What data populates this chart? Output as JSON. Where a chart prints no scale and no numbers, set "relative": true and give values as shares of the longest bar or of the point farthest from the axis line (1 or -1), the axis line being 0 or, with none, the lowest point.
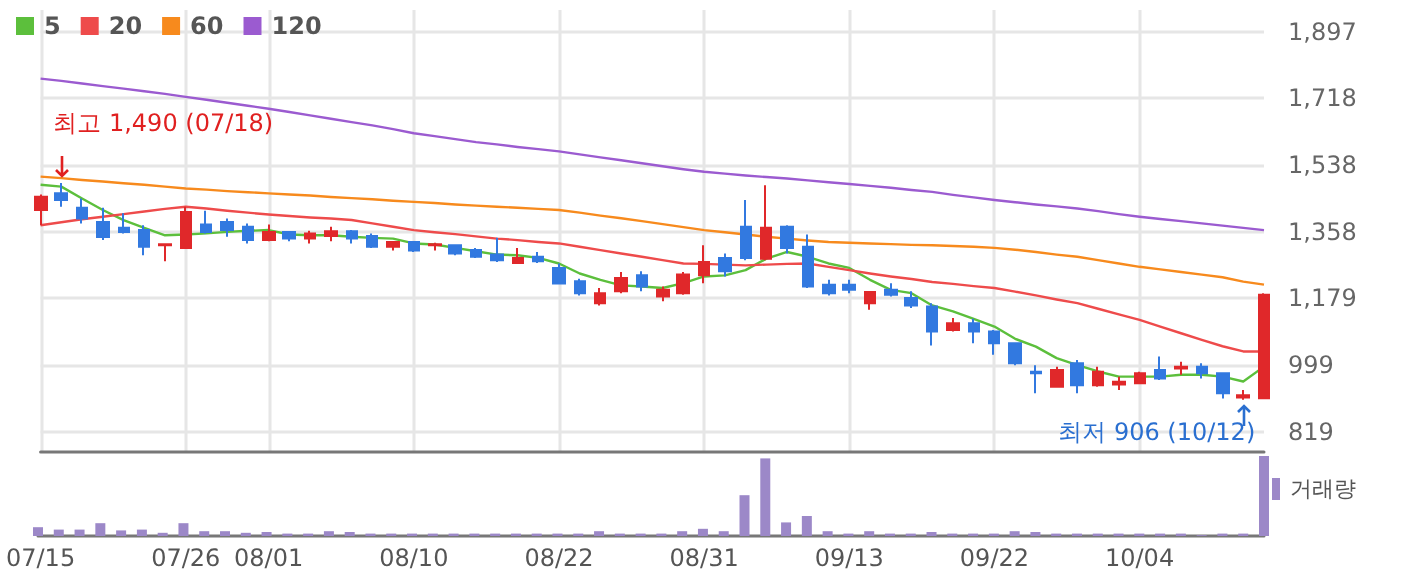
{
  "chart_data": [
    {
      "type": "candlestick",
      "categories": [
        "07/15",
        null,
        null,
        null,
        null,
        null,
        null,
        "07/26",
        null,
        null,
        null,
        "08/01",
        null,
        null,
        null,
        null,
        null,
        null,
        "08/10",
        null,
        null,
        null,
        null,
        null,
        null,
        "08/22",
        null,
        null,
        null,
        null,
        null,
        null,
        "08/31",
        null,
        null,
        null,
        null,
        null,
        null,
        "09/13",
        null,
        null,
        null,
        null,
        null,
        null,
        "09/22",
        null,
        null,
        null,
        null,
        null,
        null,
        "10/04",
        null,
        null,
        null,
        null,
        null,
        null
      ],
      "ohlc": [
        [
          1417,
          1459,
          1376,
          1453
        ],
        [
          1462,
          1490,
          1426,
          1444
        ],
        [
          1423,
          1448,
          1381,
          1394
        ],
        [
          1385,
          1423,
          1336,
          1344
        ],
        [
          1369,
          1408,
          1354,
          1358
        ],
        [
          1363,
          1376,
          1295,
          1318
        ],
        [
          1322,
          1327,
          1279,
          1325
        ],
        [
          1315,
          1426,
          1315,
          1412
        ],
        [
          1378,
          1415,
          1354,
          1358
        ],
        [
          1385,
          1394,
          1345,
          1363
        ],
        [
          1372,
          1381,
          1327,
          1336
        ],
        [
          1336,
          1378,
          1333,
          1358
        ],
        [
          1358,
          1360,
          1333,
          1340
        ],
        [
          1340,
          1361,
          1327,
          1354
        ],
        [
          1347,
          1372,
          1333,
          1360
        ],
        [
          1360,
          1363,
          1327,
          1340
        ],
        [
          1347,
          1354,
          1315,
          1318
        ],
        [
          1318,
          1333,
          1308,
          1331
        ],
        [
          1331,
          1333,
          1304,
          1308
        ],
        [
          1322,
          1329,
          1308,
          1325
        ],
        [
          1322,
          1324,
          1295,
          1300
        ],
        [
          1309,
          1315,
          1288,
          1291
        ],
        [
          1297,
          1342,
          1277,
          1282
        ],
        [
          1274,
          1315,
          1274,
          1288
        ],
        [
          1291,
          1304,
          1274,
          1279
        ],
        [
          1261,
          1273,
          1219,
          1219
        ],
        [
          1225,
          1232,
          1187,
          1193
        ],
        [
          1166,
          1207,
          1160,
          1193
        ],
        [
          1198,
          1250,
          1193,
          1234
        ],
        [
          1241,
          1252,
          1198,
          1211
        ],
        [
          1184,
          1211,
          1171,
          1202
        ],
        [
          1193,
          1250,
          1189,
          1243
        ],
        [
          1241,
          1322,
          1220,
          1277
        ],
        [
          1288,
          1300,
          1238,
          1252
        ],
        [
          1372,
          1444,
          1282,
          1288
        ],
        [
          1286,
          1484,
          1282,
          1369
        ],
        [
          1372,
          1376,
          1300,
          1315
        ],
        [
          1318,
          1351,
          1207,
          1211
        ],
        [
          1216,
          1229,
          1187,
          1193
        ],
        [
          1216,
          1229,
          1193,
          1202
        ],
        [
          1166,
          1196,
          1148,
          1196
        ],
        [
          1202,
          1220,
          1184,
          1189
        ],
        [
          1180,
          1198,
          1153,
          1160
        ],
        [
          1157,
          1166,
          1052,
          1090
        ],
        [
          1094,
          1126,
          1090,
          1112
        ],
        [
          1112,
          1124,
          1058,
          1090
        ],
        [
          1090,
          1094,
          1027,
          1058
        ],
        [
          1058,
          1061,
          999,
          1004
        ],
        [
          981,
          999,
          923,
          977
        ],
        [
          941,
          995,
          941,
          986
        ],
        [
          1004,
          1013,
          923,
          945
        ],
        [
          945,
          995,
          941,
          981
        ],
        [
          947,
          968,
          932,
          954
        ],
        [
          950,
          981,
          950,
          977
        ],
        [
          986,
          1022,
          959,
          963
        ],
        [
          990,
          1008,
          973,
          995
        ],
        [
          995,
          1004,
          963,
          977
        ],
        [
          977,
          977,
          909,
          923
        ],
        [
          912,
          932,
          906,
          918
        ],
        [
          910,
          1193,
          910,
          1189
        ]
      ],
      "colors": [
        "#e0282a",
        "#3279e0",
        "#3279e0",
        "#3279e0",
        "#3279e0",
        "#3279e0",
        "#e0282a",
        "#e0282a",
        "#3279e0",
        "#3279e0",
        "#3279e0",
        "#e0282a",
        "#3279e0",
        "#e0282a",
        "#e0282a",
        "#3279e0",
        "#3279e0",
        "#e0282a",
        "#3279e0",
        "#e0282a",
        "#3279e0",
        "#3279e0",
        "#3279e0",
        "#e0282a",
        "#3279e0",
        "#3279e0",
        "#3279e0",
        "#e0282a",
        "#e0282a",
        "#3279e0",
        "#e0282a",
        "#e0282a",
        "#e0282a",
        "#3279e0",
        "#3279e0",
        "#e0282a",
        "#3279e0",
        "#3279e0",
        "#3279e0",
        "#3279e0",
        "#e0282a",
        "#3279e0",
        "#3279e0",
        "#3279e0",
        "#e0282a",
        "#3279e0",
        "#3279e0",
        "#3279e0",
        "#3279e0",
        "#e0282a",
        "#3279e0",
        "#e0282a",
        "#e0282a",
        "#e0282a",
        "#3279e0",
        "#e0282a",
        "#3279e0",
        "#3279e0",
        "#e0282a",
        "#e0282a"
      ],
      "series": [
        {
          "type": "line",
          "name": "5",
          "color": "#5cbf3c",
          "values": [
            1485,
            1480,
            1448,
            1417,
            1390,
            1369,
            1349,
            1351,
            1354,
            1358,
            1361,
            1363,
            1351,
            1349,
            1349,
            1345,
            1342,
            1340,
            1327,
            1324,
            1315,
            1306,
            1297,
            1295,
            1288,
            1273,
            1246,
            1229,
            1214,
            1211,
            1207,
            1220,
            1238,
            1241,
            1255,
            1286,
            1304,
            1291,
            1273,
            1261,
            1229,
            1202,
            1193,
            1160,
            1144,
            1124,
            1103,
            1070,
            1049,
            1018,
            999,
            982,
            968,
            968,
            968,
            973,
            973,
            968,
            955,
            995
          ]
        },
        {
          "type": "line",
          "name": "20",
          "color": "#ee4b4b",
          "values": [
            1376,
            1384,
            1392,
            1399,
            1406,
            1413,
            1420,
            1426,
            1421,
            1415,
            1410,
            1405,
            1401,
            1397,
            1394,
            1390,
            1381,
            1372,
            1363,
            1357,
            1352,
            1346,
            1340,
            1336,
            1331,
            1327,
            1318,
            1309,
            1300,
            1291,
            1282,
            1273,
            1272,
            1270,
            1268,
            1270,
            1272,
            1273,
            1264,
            1255,
            1246,
            1238,
            1231,
            1223,
            1218,
            1212,
            1207,
            1197,
            1187,
            1176,
            1166,
            1151,
            1136,
            1121,
            1103,
            1085,
            1067,
            1050,
            1036,
            1036
          ]
        },
        {
          "type": "line",
          "name": "60",
          "color": "#f78a1d",
          "values": [
            1507,
            1503,
            1498,
            1494,
            1489,
            1485,
            1480,
            1475,
            1472,
            1468,
            1465,
            1462,
            1459,
            1456,
            1452,
            1449,
            1446,
            1442,
            1439,
            1436,
            1432,
            1429,
            1426,
            1423,
            1420,
            1417,
            1410,
            1402,
            1395,
            1387,
            1379,
            1371,
            1363,
            1357,
            1351,
            1345,
            1340,
            1335,
            1331,
            1329,
            1327,
            1325,
            1323,
            1322,
            1320,
            1318,
            1315,
            1310,
            1304,
            1297,
            1291,
            1282,
            1273,
            1264,
            1257,
            1250,
            1243,
            1236,
            1224,
            1216
          ]
        },
        {
          "type": "line",
          "name": "120",
          "color": "#9b5bd0",
          "values": [
            1771,
            1765,
            1758,
            1751,
            1744,
            1737,
            1730,
            1722,
            1714,
            1706,
            1698,
            1690,
            1681,
            1672,
            1663,
            1654,
            1645,
            1635,
            1624,
            1616,
            1608,
            1600,
            1594,
            1587,
            1581,
            1575,
            1567,
            1559,
            1551,
            1543,
            1535,
            1527,
            1520,
            1515,
            1510,
            1506,
            1502,
            1497,
            1492,
            1487,
            1482,
            1477,
            1471,
            1466,
            1458,
            1451,
            1444,
            1438,
            1432,
            1427,
            1421,
            1414,
            1406,
            1399,
            1393,
            1387,
            1381,
            1375,
            1369,
            1363
          ]
        }
      ],
      "ylim": [
        765,
        1956
      ],
      "yticks": [
        {
          "value": 819,
          "label": "819"
        },
        {
          "value": 999,
          "label": "999"
        },
        {
          "value": 1179,
          "label": "1,179"
        },
        {
          "value": 1358,
          "label": "1,358"
        },
        {
          "value": 1538,
          "label": "1,538"
        },
        {
          "value": 1718,
          "label": "1,718"
        },
        {
          "value": 1897,
          "label": "1,897"
        }
      ],
      "annotations": [
        {
          "text": "최고 1,490 (07/18)",
          "y": 1490
        },
        "최저 906 (10/12)"
      ],
      "grid": true,
      "legend": "top left",
      "marker": "none"
    },
    {
      "type": "bar",
      "relative": true,
      "categories": [
        null,
        null,
        null,
        null,
        null,
        null,
        null,
        null,
        null,
        null,
        null,
        null,
        null,
        null,
        null,
        null,
        null,
        null,
        null,
        null,
        null,
        null,
        null,
        null,
        null,
        null,
        null,
        null,
        null,
        null,
        null,
        null,
        null,
        null,
        null,
        null,
        null,
        null,
        null,
        null,
        null,
        null,
        null,
        null,
        null,
        null,
        null,
        null,
        null,
        null,
        null,
        null,
        null,
        null,
        null,
        null,
        null,
        null,
        null,
        null
      ],
      "series": [
        {
          "name": "거래량",
          "color": "#9c88c8",
          "values": [
            0.11,
            0.08,
            0.08,
            0.16,
            0.07,
            0.08,
            0.04,
            0.16,
            0.06,
            0.06,
            0.04,
            0.05,
            0.03,
            0.03,
            0.06,
            0.05,
            0.03,
            0.03,
            0.03,
            0.03,
            0.03,
            0.03,
            0.03,
            0.03,
            0.03,
            0.03,
            0.03,
            0.06,
            0.03,
            0.03,
            0.03,
            0.06,
            0.09,
            0.06,
            0.51,
            0.97,
            0.17,
            0.25,
            0.06,
            0.03,
            0.06,
            0.03,
            0.03,
            0.05,
            0.03,
            0.03,
            0.03,
            0.06,
            0.05,
            0.03,
            0.03,
            0.03,
            0.03,
            0.03,
            0.03,
            0.03,
            0.01,
            0.03,
            0.03,
            1
          ]
        }
      ],
      "legend": "top right"
    }
  ]
}
